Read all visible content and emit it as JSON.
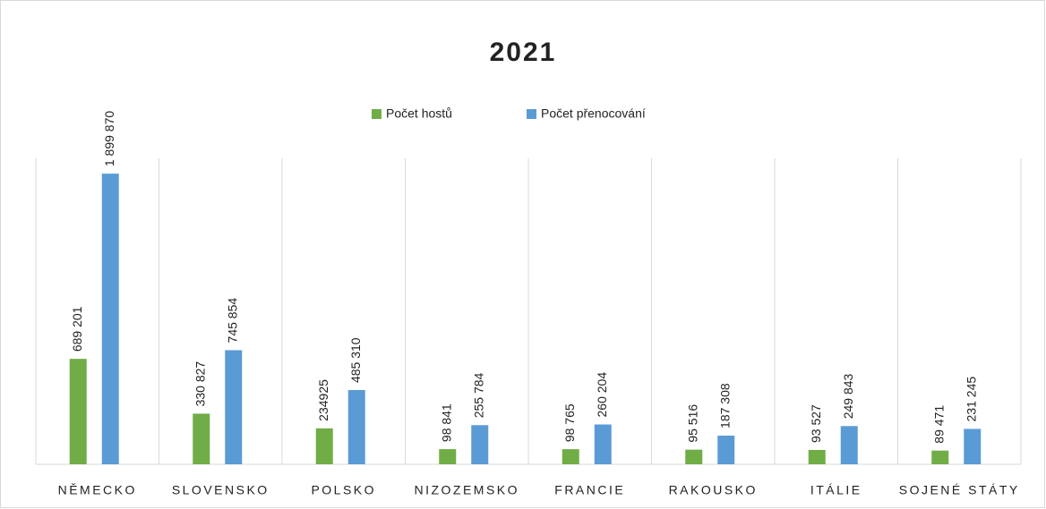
{
  "chart_data": {
    "type": "bar",
    "title": "2021",
    "categories": [
      "NĚMECKO",
      "SLOVENSKO",
      "POLSKO",
      "NIZOZEMSKO",
      "FRANCIE",
      "RAKOUSKO",
      "ITÁLIE",
      "SOJENÉ STÁTY"
    ],
    "series": [
      {
        "name": "Počet hostů",
        "color": "#70ad47",
        "values": [
          689201,
          330827,
          234925,
          98841,
          98765,
          95516,
          93527,
          89471
        ],
        "value_labels": [
          "689 201",
          "330 827",
          "234925",
          "98 841",
          "98 765",
          "95 516",
          "93 527",
          "89 471"
        ]
      },
      {
        "name": "Počet přenocování",
        "color": "#5b9bd5",
        "values": [
          1899870,
          745854,
          485310,
          255784,
          260204,
          187308,
          249843,
          231245
        ],
        "value_labels": [
          "1 899 870",
          "745 854",
          "485 310",
          "255 784",
          "260 204",
          "187 308",
          "249 843",
          "231 245"
        ]
      }
    ],
    "ylim": [
      0,
      2000000
    ],
    "legend": "top",
    "grid": true
  }
}
